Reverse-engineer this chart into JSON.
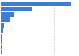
{
  "values": [
    14500,
    6500,
    2800,
    1900,
    650,
    420,
    280,
    180,
    130,
    90
  ],
  "bar_color": "#3a7fd5",
  "background_color": "#ffffff",
  "bar_height": 0.75,
  "xlim_max": 16000,
  "grid_color": "#c8c8c8",
  "figsize": [
    1.0,
    0.71
  ],
  "dpi": 100,
  "n_bars": 10
}
